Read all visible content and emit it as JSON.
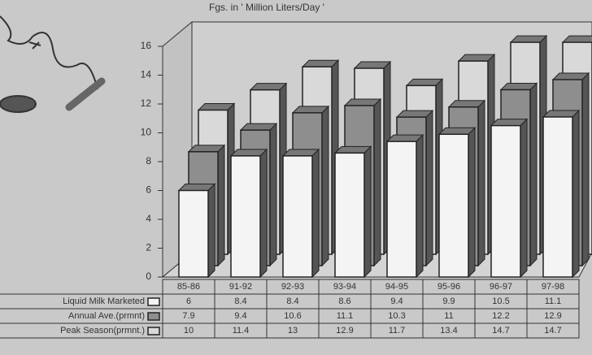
{
  "chart_data": {
    "type": "bar3d",
    "title": "Fgs. in ' Million Liters/Day '",
    "categories": [
      "85-86",
      "91-92",
      "92-93",
      "93-94",
      "94-95",
      "95-96",
      "96-97",
      "97-98"
    ],
    "series": [
      {
        "name": "Liquid Milk Marketed",
        "color": "#f4f4f4",
        "values": [
          6,
          8.4,
          8.4,
          8.6,
          9.4,
          9.9,
          10.5,
          11.1
        ]
      },
      {
        "name": "Annual Ave.(prmnt)",
        "color": "#8e8e8e",
        "values": [
          7.9,
          9.4,
          10.6,
          11.1,
          10.3,
          11,
          12.2,
          12.9
        ]
      },
      {
        "name": "Peak Season(prmnt.)",
        "color": "#d9d9d9",
        "values": [
          10,
          11.4,
          13,
          12.9,
          11.7,
          13.4,
          14.7,
          14.7
        ]
      }
    ],
    "ylim": [
      0,
      16
    ],
    "yticks": [
      0,
      2,
      4,
      6,
      8,
      10,
      12,
      14,
      16
    ]
  }
}
